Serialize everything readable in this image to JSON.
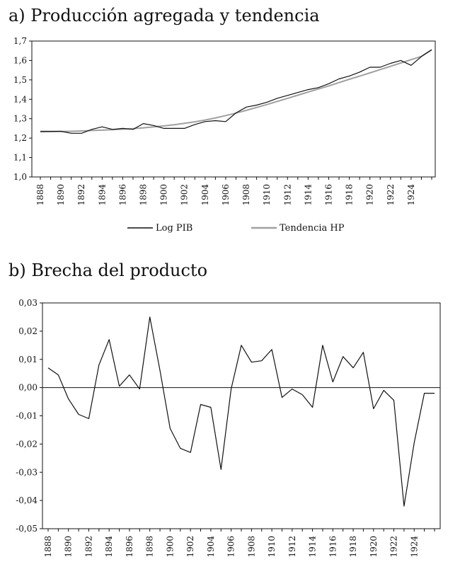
{
  "chart_data": [
    {
      "type": "line",
      "title": "a) Producción agregada y tendencia",
      "xlabel": "",
      "ylabel": "",
      "x": [
        1888,
        1889,
        1890,
        1891,
        1892,
        1893,
        1894,
        1895,
        1896,
        1897,
        1898,
        1899,
        1900,
        1901,
        1902,
        1903,
        1904,
        1905,
        1906,
        1907,
        1908,
        1909,
        1910,
        1911,
        1912,
        1913,
        1914,
        1915,
        1916,
        1917,
        1918,
        1919,
        1920,
        1921,
        1922,
        1923,
        1924,
        1925,
        1926
      ],
      "x_tick_labels": [
        "1888",
        "1890",
        "1892",
        "1894",
        "1896",
        "1898",
        "1900",
        "1902",
        "1904",
        "1906",
        "1908",
        "1910",
        "1912",
        "1914",
        "1916",
        "1918",
        "1920",
        "1922",
        "1924"
      ],
      "ylim": [
        1.0,
        1.7
      ],
      "y_tick_labels": [
        "1,0",
        "1,1",
        "1,2",
        "1,3",
        "1,4",
        "1,5",
        "1,6",
        "1,7"
      ],
      "grid": false,
      "legend_position": "bottom",
      "series": [
        {
          "name": "Log PIB",
          "color": "#111111",
          "values": [
            1.235,
            1.235,
            1.235,
            1.225,
            1.225,
            1.245,
            1.258,
            1.245,
            1.25,
            1.245,
            1.275,
            1.265,
            1.25,
            1.25,
            1.25,
            1.27,
            1.285,
            1.29,
            1.285,
            1.33,
            1.36,
            1.37,
            1.385,
            1.405,
            1.42,
            1.435,
            1.45,
            1.46,
            1.48,
            1.505,
            1.52,
            1.54,
            1.565,
            1.565,
            1.585,
            1.6,
            1.575,
            1.62,
            1.655
          ]
        },
        {
          "name": "Tendencia HP",
          "color": "#a0a0a0",
          "values": [
            1.232,
            1.233,
            1.234,
            1.235,
            1.237,
            1.239,
            1.241,
            1.243,
            1.246,
            1.249,
            1.253,
            1.258,
            1.263,
            1.269,
            1.276,
            1.284,
            1.293,
            1.304,
            1.316,
            1.329,
            1.343,
            1.358,
            1.373,
            1.389,
            1.405,
            1.421,
            1.437,
            1.453,
            1.469,
            1.486,
            1.503,
            1.519,
            1.536,
            1.553,
            1.57,
            1.587,
            1.604,
            1.621,
            1.655
          ]
        }
      ]
    },
    {
      "type": "line",
      "title": "b) Brecha del producto",
      "xlabel": "",
      "ylabel": "",
      "x": [
        1888,
        1889,
        1890,
        1891,
        1892,
        1893,
        1894,
        1895,
        1896,
        1897,
        1898,
        1899,
        1900,
        1901,
        1902,
        1903,
        1904,
        1905,
        1906,
        1907,
        1908,
        1909,
        1910,
        1911,
        1912,
        1913,
        1914,
        1915,
        1916,
        1917,
        1918,
        1919,
        1920,
        1921,
        1922,
        1923,
        1924,
        1925,
        1926
      ],
      "x_tick_labels": [
        "1888",
        "1890",
        "1892",
        "1894",
        "1896",
        "1898",
        "1900",
        "1902",
        "1904",
        "1906",
        "1908",
        "1910",
        "1912",
        "1914",
        "1916",
        "1918",
        "1920",
        "1922",
        "1924"
      ],
      "ylim": [
        -0.05,
        0.03
      ],
      "y_tick_labels": [
        "-0,05",
        "-0,04",
        "-0,03",
        "-0,02",
        "-0,01",
        "0,00",
        "0,01",
        "0,02",
        "0,03"
      ],
      "grid": false,
      "reference_line": 0.0,
      "series": [
        {
          "color": "#111111",
          "values": [
            0.007,
            0.0045,
            -0.004,
            -0.0095,
            -0.011,
            0.008,
            0.017,
            0.0005,
            0.0045,
            -0.0005,
            0.025,
            0.006,
            -0.0145,
            -0.0215,
            -0.023,
            -0.006,
            -0.007,
            -0.029,
            -0.0005,
            0.015,
            0.009,
            0.0095,
            0.0135,
            -0.0035,
            -0.0005,
            -0.0025,
            -0.007,
            0.015,
            0.002,
            0.011,
            0.007,
            0.0125,
            -0.0075,
            -0.001,
            -0.0045,
            -0.042,
            -0.0195,
            -0.002,
            -0.002
          ]
        }
      ]
    }
  ]
}
